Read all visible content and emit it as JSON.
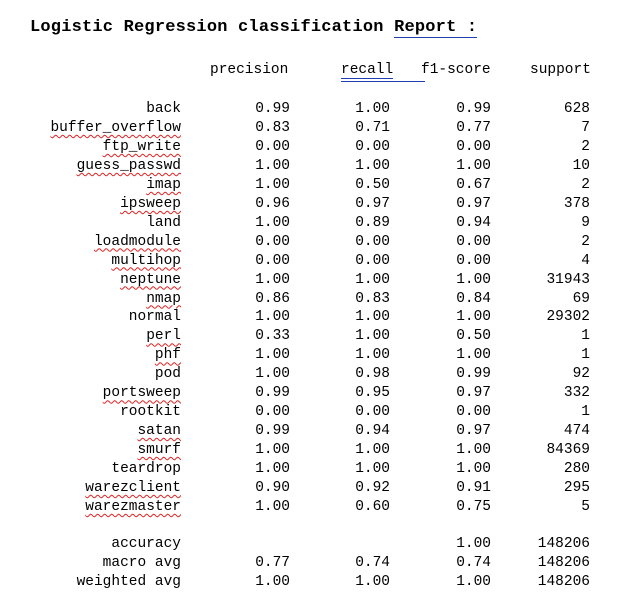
{
  "title": {
    "prefix": "Logistic Regression classification ",
    "underlined": "Report :"
  },
  "headers": {
    "precision": "precision",
    "recall": "recall",
    "f1": "f1-score",
    "support": "support"
  },
  "rows": [
    {
      "label": "back",
      "precision": "0.99",
      "recall": "1.00",
      "f1": "0.99",
      "support": "628",
      "spell": false
    },
    {
      "label": "buffer_overflow",
      "precision": "0.83",
      "recall": "0.71",
      "f1": "0.77",
      "support": "7",
      "spell": true
    },
    {
      "label": "ftp_write",
      "precision": "0.00",
      "recall": "0.00",
      "f1": "0.00",
      "support": "2",
      "spell": true
    },
    {
      "label": "guess_passwd",
      "precision": "1.00",
      "recall": "1.00",
      "f1": "1.00",
      "support": "10",
      "spell": true
    },
    {
      "label": "imap",
      "precision": "1.00",
      "recall": "0.50",
      "f1": "0.67",
      "support": "2",
      "spell": true
    },
    {
      "label": "ipsweep",
      "precision": "0.96",
      "recall": "0.97",
      "f1": "0.97",
      "support": "378",
      "spell": true
    },
    {
      "label": "land",
      "precision": "1.00",
      "recall": "0.89",
      "f1": "0.94",
      "support": "9",
      "spell": false
    },
    {
      "label": "loadmodule",
      "precision": "0.00",
      "recall": "0.00",
      "f1": "0.00",
      "support": "2",
      "spell": true
    },
    {
      "label": "multihop",
      "precision": "0.00",
      "recall": "0.00",
      "f1": "0.00",
      "support": "4",
      "spell": true
    },
    {
      "label": "neptune",
      "precision": "1.00",
      "recall": "1.00",
      "f1": "1.00",
      "support": "31943",
      "spell": true
    },
    {
      "label": "nmap",
      "precision": "0.86",
      "recall": "0.83",
      "f1": "0.84",
      "support": "69",
      "spell": true
    },
    {
      "label": "normal",
      "precision": "1.00",
      "recall": "1.00",
      "f1": "1.00",
      "support": "29302",
      "spell": false
    },
    {
      "label": "perl",
      "precision": "0.33",
      "recall": "1.00",
      "f1": "0.50",
      "support": "1",
      "spell": true
    },
    {
      "label": "phf",
      "precision": "1.00",
      "recall": "1.00",
      "f1": "1.00",
      "support": "1",
      "spell": true
    },
    {
      "label": "pod",
      "precision": "1.00",
      "recall": "0.98",
      "f1": "0.99",
      "support": "92",
      "spell": false
    },
    {
      "label": "portsweep",
      "precision": "0.99",
      "recall": "0.95",
      "f1": "0.97",
      "support": "332",
      "spell": true
    },
    {
      "label": "rootkit",
      "precision": "0.00",
      "recall": "0.00",
      "f1": "0.00",
      "support": "1",
      "spell": false
    },
    {
      "label": "satan",
      "precision": "0.99",
      "recall": "0.94",
      "f1": "0.97",
      "support": "474",
      "spell": true
    },
    {
      "label": "smurf",
      "precision": "1.00",
      "recall": "1.00",
      "f1": "1.00",
      "support": "84369",
      "spell": true
    },
    {
      "label": "teardrop",
      "precision": "1.00",
      "recall": "1.00",
      "f1": "1.00",
      "support": "280",
      "spell": false
    },
    {
      "label": "warezclient",
      "precision": "0.90",
      "recall": "0.92",
      "f1": "0.91",
      "support": "295",
      "spell": true
    },
    {
      "label": "warezmaster",
      "precision": "1.00",
      "recall": "0.60",
      "f1": "0.75",
      "support": "5",
      "spell": true
    }
  ],
  "summary": [
    {
      "label": "accuracy",
      "precision": "",
      "recall": "",
      "f1": "1.00",
      "support": "148206"
    },
    {
      "label": "macro avg",
      "precision": "0.77",
      "recall": "0.74",
      "f1": "0.74",
      "support": "148206"
    },
    {
      "label": "weighted avg",
      "precision": "1.00",
      "recall": "1.00",
      "f1": "1.00",
      "support": "148206"
    }
  ],
  "colors": {
    "text": "#000000",
    "spellcheck": "#e02020",
    "grammar_underline": "#1f3fb0",
    "background": "#ffffff"
  }
}
